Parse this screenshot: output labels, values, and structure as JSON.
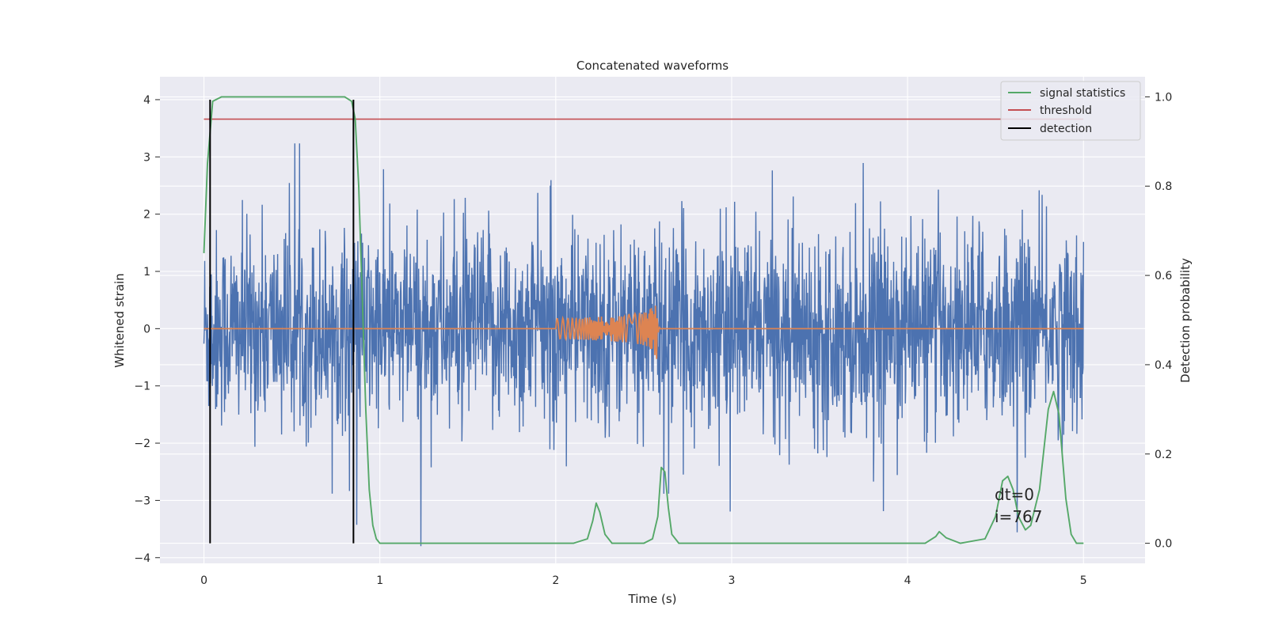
{
  "chart_data": {
    "type": "line",
    "title": "Concatenated waveforms",
    "xlabel": "Time (s)",
    "ylabel": "Whitened strain",
    "y2label": "Detection probability",
    "xlim": [
      -0.25,
      5.35
    ],
    "ylim": [
      -4.1,
      4.4
    ],
    "y2lim": [
      -0.045,
      1.045
    ],
    "x_ticks": [
      "0",
      "1",
      "2",
      "3",
      "4",
      "5"
    ],
    "y_ticks": [
      "4",
      "3",
      "2",
      "1",
      "0",
      "−1",
      "−2",
      "−3",
      "−4"
    ],
    "y2_ticks": [
      "1.0",
      "0.8",
      "0.6",
      "0.4",
      "0.2",
      "0.0"
    ],
    "grid": true,
    "legend_position": "top-right",
    "legend": [
      "signal statistics",
      "threshold",
      "detection"
    ],
    "colors": {
      "noise": "#4c72b0",
      "injected": "#dd8452",
      "signal_statistics": "#55a868",
      "threshold": "#c44e52",
      "detection": "#000000",
      "background": "#eaeaf2",
      "grid": "#ffffff"
    },
    "series": [
      {
        "name": "signal statistics",
        "axis": "right",
        "x": [
          0,
          0.02,
          0.05,
          0.1,
          0.2,
          0.5,
          0.8,
          0.84,
          0.86,
          0.88,
          0.9,
          0.92,
          0.94,
          0.96,
          0.98,
          1.0,
          1.1,
          2.1,
          2.18,
          2.21,
          2.23,
          2.25,
          2.28,
          2.32,
          2.4,
          2.5,
          2.55,
          2.58,
          2.6,
          2.62,
          2.64,
          2.66,
          2.7,
          3.0,
          4.1,
          4.16,
          4.18,
          4.22,
          4.3,
          4.44,
          4.5,
          4.54,
          4.57,
          4.6,
          4.63,
          4.67,
          4.7,
          4.75,
          4.8,
          4.83,
          4.86,
          4.9,
          4.93,
          4.96,
          5.0
        ],
        "values": [
          0.65,
          0.85,
          0.99,
          1.0,
          1.0,
          1.0,
          1.0,
          0.99,
          0.95,
          0.8,
          0.55,
          0.3,
          0.12,
          0.04,
          0.01,
          0.0,
          0.0,
          0.0,
          0.01,
          0.05,
          0.09,
          0.07,
          0.02,
          0.0,
          0.0,
          0.0,
          0.01,
          0.06,
          0.17,
          0.16,
          0.08,
          0.02,
          0.0,
          0.0,
          0.0,
          0.015,
          0.026,
          0.012,
          0.0,
          0.01,
          0.06,
          0.14,
          0.15,
          0.12,
          0.06,
          0.03,
          0.04,
          0.12,
          0.3,
          0.34,
          0.29,
          0.1,
          0.02,
          0.0,
          0.0
        ]
      },
      {
        "name": "threshold",
        "axis": "right",
        "x": [
          0,
          5
        ],
        "values": [
          0.95,
          0.95
        ]
      },
      {
        "name": "detection",
        "axis": "left",
        "x": [
          0.035,
          0.035,
          0.85,
          0.85
        ],
        "values": [
          -3.75,
          4.0,
          -3.75,
          4.0
        ]
      }
    ],
    "annotations": [
      "dt=0",
      "i=767"
    ]
  }
}
